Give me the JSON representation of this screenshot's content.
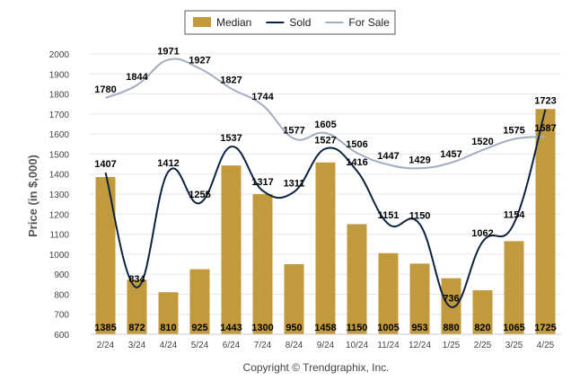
{
  "chart_data": {
    "type": "bar",
    "ylabel": "Price (in $,000)",
    "xlabel": "",
    "ylim": [
      600,
      2000
    ],
    "ytick_step": 100,
    "categories": [
      "2/24",
      "3/24",
      "4/24",
      "5/24",
      "6/24",
      "7/24",
      "8/24",
      "9/24",
      "10/24",
      "11/24",
      "12/24",
      "1/25",
      "2/25",
      "3/25",
      "4/25"
    ],
    "series": [
      {
        "name": "Median",
        "kind": "bar",
        "color": "#c29a3e",
        "values": [
          1385,
          872,
          810,
          925,
          1443,
          1300,
          950,
          1458,
          1150,
          1005,
          953,
          880,
          820,
          1065,
          1725
        ]
      },
      {
        "name": "Sold",
        "kind": "line",
        "color": "#0d2240",
        "values": [
          1407,
          834,
          1412,
          1255,
          1537,
          1317,
          1311,
          1527,
          1416,
          1151,
          1150,
          736,
          1062,
          1154,
          1723
        ]
      },
      {
        "name": "For Sale",
        "kind": "line",
        "color": "#a3adc2",
        "values": [
          1780,
          1844,
          1971,
          1927,
          1827,
          1744,
          1577,
          1605,
          1506,
          1447,
          1429,
          1457,
          1520,
          1575,
          1587
        ]
      }
    ],
    "legend_position": "top-center",
    "grid": true
  },
  "footer": "Copyright © Trendgraphix, Inc."
}
